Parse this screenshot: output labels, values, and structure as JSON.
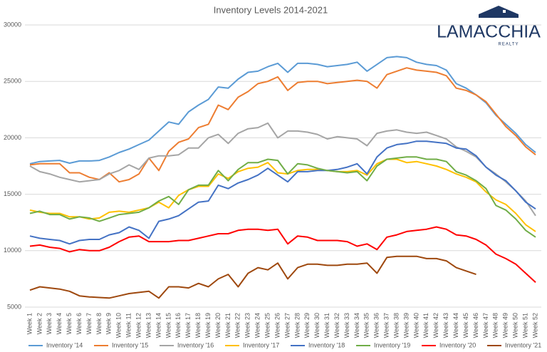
{
  "logo": {
    "name": "LAMACCHIA",
    "sub": "REALTY"
  },
  "chart_data": {
    "type": "line",
    "title": "Inventory Levels 2014-2021",
    "categories": [
      "Week 1",
      "Week 2",
      "Week 3",
      "Week 4",
      "Week 5",
      "Week 6",
      "Week 7",
      "Week 8",
      "Week 9",
      "Week 10",
      "Week 11",
      "Week 12",
      "Week 13",
      "Week 14",
      "Week 15",
      "Week 16",
      "Week 17",
      "Week 18",
      "Week 19",
      "Week 20",
      "Week 21",
      "Week 22",
      "Week 23",
      "Week 24",
      "Week 25",
      "Week 26",
      "Week 27",
      "Week 28",
      "Week 29",
      "Week 30",
      "Week 31",
      "Week 32",
      "Week 33",
      "Week 34",
      "Week 35",
      "Week 36",
      "Week 37",
      "Week 38",
      "Week 39",
      "Week 40",
      "Week 41",
      "Week 42",
      "Week 43",
      "Week 44",
      "Week 45",
      "Week 46",
      "Week 47",
      "Week 48",
      "Week 49",
      "Week 50",
      "Week 51",
      "Week 52"
    ],
    "ylim": [
      5000,
      30000
    ],
    "yticks": [
      5000,
      10000,
      15000,
      20000,
      25000,
      30000
    ],
    "grid": true,
    "legend": "bottom",
    "series": [
      {
        "name": "Inventory '14",
        "color": "#5b9bd5",
        "values": [
          17700,
          17900,
          17950,
          18000,
          17750,
          17950,
          17950,
          18000,
          18300,
          18700,
          19000,
          19400,
          19800,
          20600,
          21400,
          21200,
          22300,
          22900,
          23400,
          24500,
          24400,
          25200,
          25800,
          25900,
          26300,
          26600,
          25800,
          26600,
          26600,
          26500,
          26300,
          26400,
          26500,
          26700,
          25900,
          26500,
          27100,
          27200,
          27100,
          26700,
          26500,
          26400,
          26000,
          24800,
          24400,
          23800,
          23100,
          22000,
          21200,
          20400,
          19400,
          18700
        ]
      },
      {
        "name": "Inventory '15",
        "color": "#ed7d31",
        "values": [
          17600,
          17700,
          17700,
          17700,
          16900,
          16900,
          16500,
          16300,
          16900,
          16100,
          16300,
          16800,
          18200,
          17100,
          18800,
          19600,
          19900,
          20900,
          21200,
          22900,
          22500,
          23600,
          24100,
          24800,
          25000,
          25400,
          24200,
          24900,
          25000,
          25000,
          24800,
          24900,
          25000,
          25100,
          25000,
          24400,
          25600,
          25900,
          26200,
          26000,
          25900,
          25800,
          25500,
          24400,
          24200,
          23800,
          23200,
          22100,
          21000,
          20200,
          19200,
          18500
        ]
      },
      {
        "name": "Inventory '16",
        "color": "#a5a5a5",
        "values": [
          17500,
          17000,
          16800,
          16500,
          16300,
          16100,
          16200,
          16300,
          16800,
          17100,
          17600,
          17200,
          18200,
          18400,
          18400,
          18500,
          19100,
          19100,
          20000,
          20300,
          19500,
          20400,
          20800,
          20900,
          21300,
          20000,
          20600,
          20600,
          20500,
          20300,
          19900,
          20100,
          20000,
          19900,
          19300,
          20400,
          20600,
          20700,
          20500,
          20400,
          20500,
          20200,
          19900,
          19200,
          18800,
          18300,
          17400,
          16800,
          16100,
          15300,
          14400,
          13100
        ]
      },
      {
        "name": "Inventory '17",
        "color": "#ffc000",
        "values": [
          13600,
          13400,
          13300,
          13300,
          13000,
          13000,
          12800,
          12900,
          13400,
          13500,
          13400,
          13600,
          13800,
          14300,
          13800,
          14900,
          15400,
          15700,
          15700,
          16800,
          16400,
          17000,
          17300,
          17400,
          17800,
          16900,
          16800,
          17100,
          17200,
          17200,
          17100,
          17000,
          17000,
          17100,
          16700,
          17700,
          18100,
          18100,
          17800,
          17900,
          17700,
          17500,
          17200,
          16800,
          16500,
          16100,
          15200,
          14500,
          14100,
          13300,
          12300,
          11700
        ]
      },
      {
        "name": "Inventory '18",
        "color": "#4472c4",
        "values": [
          11300,
          11100,
          11000,
          10900,
          10600,
          10900,
          11000,
          11000,
          11400,
          11600,
          12100,
          11800,
          11100,
          12600,
          12800,
          13100,
          13700,
          14300,
          14400,
          15800,
          15500,
          16000,
          16300,
          16700,
          17300,
          16700,
          16100,
          17000,
          17000,
          17100,
          17100,
          17200,
          17400,
          17700,
          16800,
          18300,
          19100,
          19400,
          19500,
          19700,
          19700,
          19600,
          19500,
          19100,
          19000,
          18400,
          17400,
          16700,
          16200,
          15300,
          14300,
          13700
        ]
      },
      {
        "name": "Inventory '19",
        "color": "#70ad47",
        "values": [
          13300,
          13500,
          13200,
          13200,
          12800,
          13000,
          12900,
          12600,
          12900,
          13200,
          13300,
          13400,
          13800,
          14400,
          14800,
          14100,
          15400,
          15800,
          15800,
          17100,
          16200,
          17200,
          17800,
          17800,
          18100,
          18000,
          16800,
          17700,
          17600,
          17300,
          17100,
          17000,
          16900,
          17000,
          16200,
          17500,
          18100,
          18200,
          18300,
          18300,
          18100,
          18100,
          17900,
          17000,
          16700,
          16200,
          15500,
          14000,
          13600,
          12800,
          11800,
          11200
        ]
      },
      {
        "name": "Inventory '20",
        "color": "#ff0000",
        "values": [
          10400,
          10500,
          10300,
          10200,
          9900,
          10100,
          10000,
          10000,
          10300,
          10800,
          11200,
          11300,
          10800,
          10800,
          10800,
          10900,
          10900,
          11100,
          11300,
          11500,
          11500,
          11800,
          11900,
          11900,
          11800,
          11900,
          10600,
          11300,
          11200,
          10900,
          10900,
          10900,
          10800,
          10400,
          10600,
          10100,
          11200,
          11400,
          11700,
          11800,
          11900,
          12100,
          11900,
          11400,
          11300,
          11000,
          10500,
          9700,
          9300,
          8800,
          8000,
          7200
        ]
      },
      {
        "name": "Inventory '21",
        "color": "#9e480e",
        "values": [
          6500,
          6800,
          6700,
          6600,
          6400,
          6000,
          5900,
          5850,
          5800,
          6000,
          6200,
          6300,
          6400,
          5800,
          6800,
          6800,
          6700,
          7100,
          6800,
          7500,
          7900,
          6800,
          8000,
          8500,
          8300,
          8900,
          7500,
          8500,
          8800,
          8800,
          8700,
          8700,
          8800,
          8800,
          8900,
          8000,
          9400,
          9500,
          9500,
          9500,
          9300,
          9300,
          9100,
          8500,
          8200,
          7900,
          null,
          null,
          null,
          null,
          null,
          null
        ]
      }
    ]
  }
}
